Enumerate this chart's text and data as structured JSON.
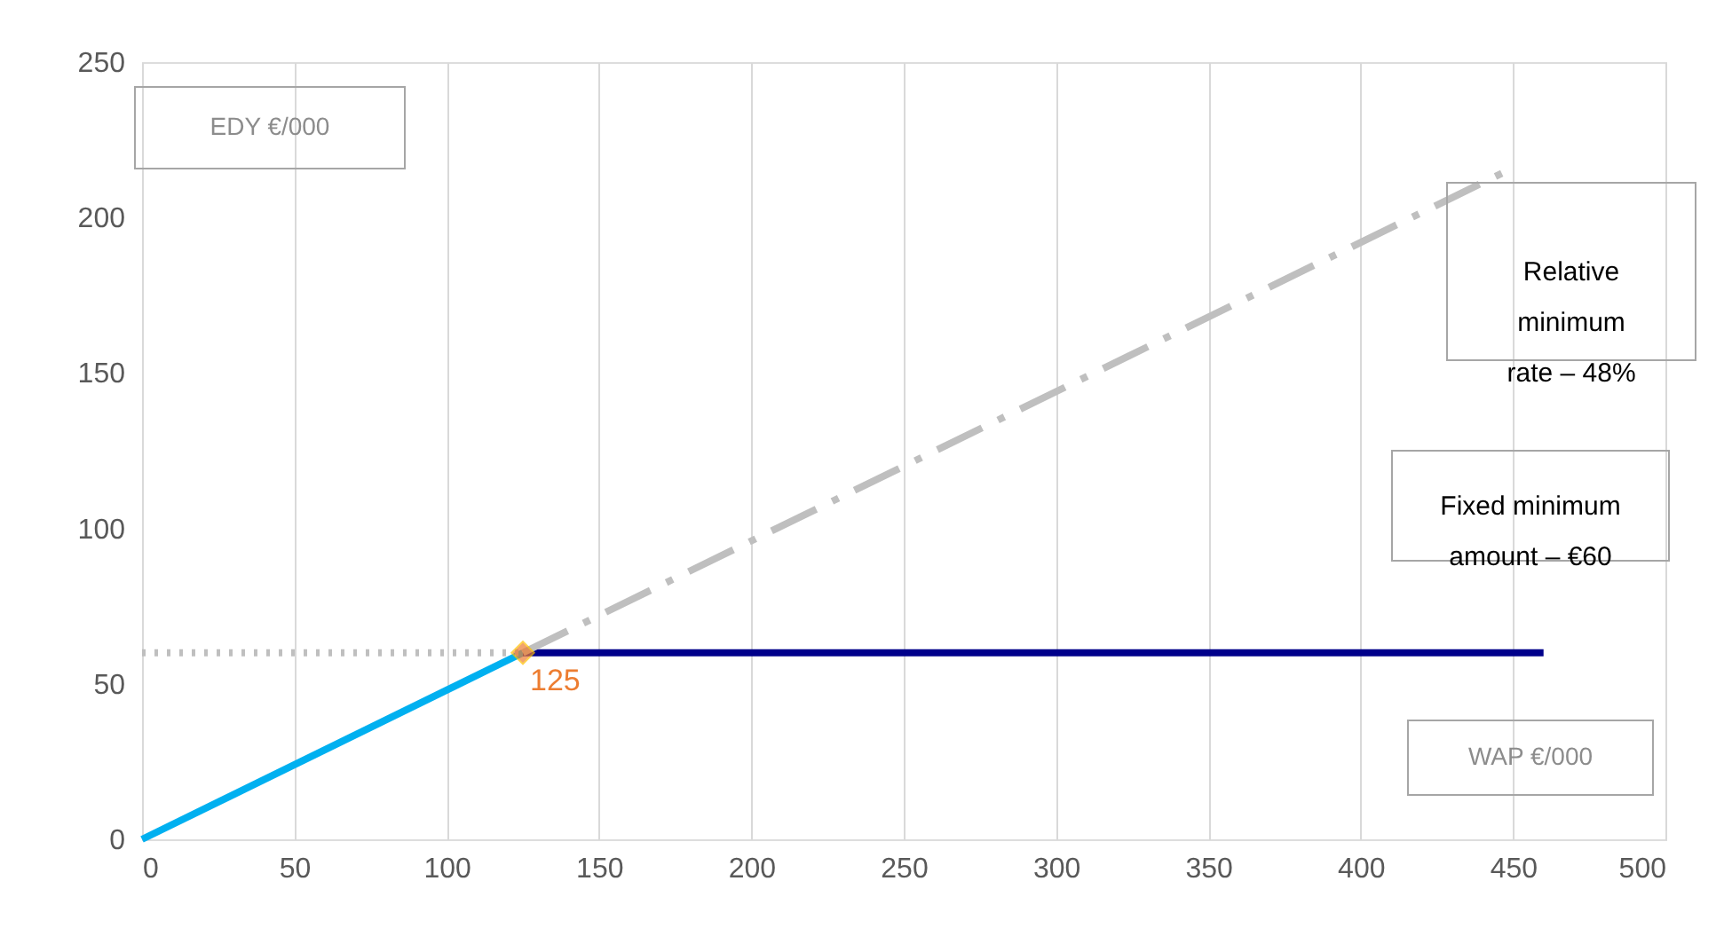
{
  "chart_data": {
    "type": "line",
    "xlabel": "WAP €/000",
    "ylabel": "EDY €/000",
    "series": [
      {
        "x": [
          0,
          125
        ],
        "values": [
          0,
          60
        ],
        "color": "#00b0f0",
        "line_style": "solid"
      },
      {
        "x": [
          125,
          460
        ],
        "values": [
          60,
          60
        ],
        "color": "#00008b",
        "line_style": "solid"
      },
      {
        "x": [
          125,
          450
        ],
        "values": [
          60,
          216
        ],
        "color": "#bfbfbf",
        "line_style": "dashed"
      },
      {
        "x": [
          0,
          125
        ],
        "values": [
          60,
          60
        ],
        "color": "#bfbfbf",
        "line_style": "dotted"
      },
      {
        "type": "scatter",
        "x": [
          125
        ],
        "values": [
          60
        ],
        "color": "#ed7d31",
        "marker": "diamond"
      }
    ],
    "annotations": [
      {
        "text": "125",
        "x": 125,
        "y": 60
      },
      "Relative minimum rate – 48%",
      "Fixed minimum amount – €60"
    ],
    "xlim": [
      0,
      500
    ],
    "xticks": [
      0,
      50,
      100,
      150,
      200,
      250,
      300,
      350,
      400,
      450,
      500
    ],
    "ylim": [
      0,
      250
    ],
    "yticks": [
      0,
      50,
      100,
      150,
      200,
      250
    ],
    "grid": "x"
  }
}
